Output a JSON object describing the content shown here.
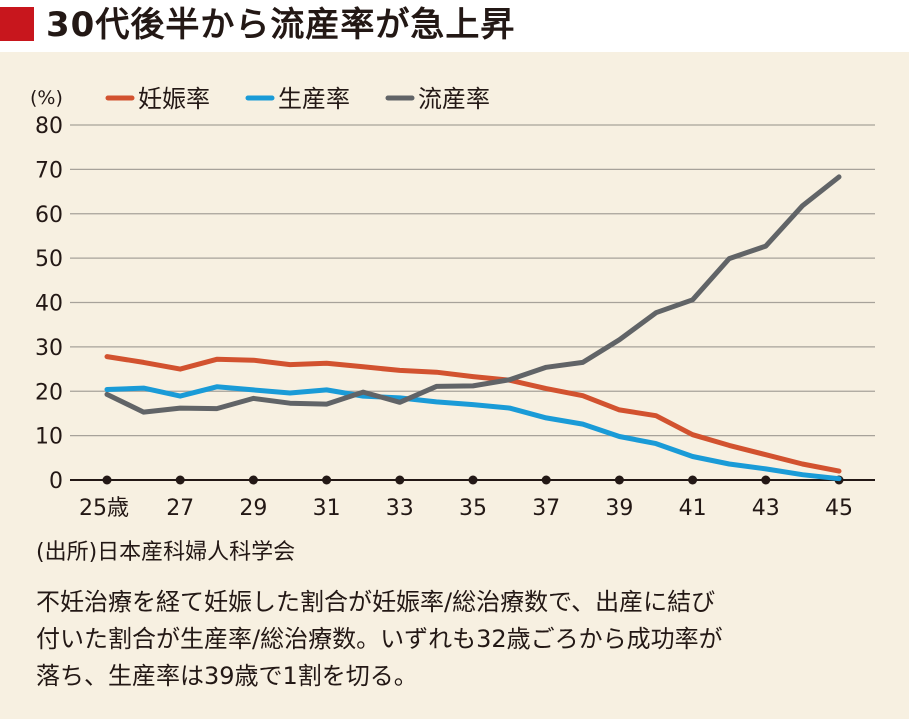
{
  "header": {
    "title": "30代後半から流産率が急上昇",
    "accent_color": "#c8161d"
  },
  "chart_data": {
    "type": "line",
    "title": "",
    "ylabel": "(%)",
    "xlabel": "",
    "ylim": [
      0,
      80
    ],
    "yticks": [
      "0",
      "10",
      "20",
      "30",
      "40",
      "50",
      "60",
      "70",
      "80"
    ],
    "x": [
      25,
      26,
      27,
      28,
      29,
      30,
      31,
      32,
      33,
      34,
      35,
      36,
      37,
      38,
      39,
      40,
      41,
      42,
      43,
      44,
      45
    ],
    "xtick_labels": [
      "25歳",
      "27",
      "29",
      "31",
      "33",
      "35",
      "37",
      "39",
      "41",
      "43",
      "45"
    ],
    "grid": true,
    "legend_position": "top-left",
    "series": [
      {
        "name": "妊娠率",
        "color": "#d2522f",
        "values": [
          27.8,
          26.5,
          25.0,
          27.2,
          27.0,
          26.0,
          26.3,
          25.5,
          24.7,
          24.3,
          23.3,
          22.5,
          20.6,
          19.0,
          15.8,
          14.5,
          10.2,
          7.8,
          5.7,
          3.6,
          2.0
        ]
      },
      {
        "name": "生産率",
        "color": "#1a9bd7",
        "values": [
          20.4,
          20.7,
          18.9,
          21.0,
          20.3,
          19.6,
          20.3,
          18.9,
          18.5,
          17.6,
          17.0,
          16.2,
          14.0,
          12.6,
          9.8,
          8.2,
          5.3,
          3.6,
          2.5,
          1.2,
          0.3
        ]
      },
      {
        "name": "流産率",
        "color": "#616467",
        "values": [
          19.3,
          15.3,
          16.2,
          16.1,
          18.4,
          17.3,
          17.1,
          19.8,
          17.5,
          21.1,
          21.2,
          22.6,
          25.4,
          26.5,
          31.6,
          37.7,
          40.6,
          49.9,
          52.7,
          61.8,
          68.3
        ]
      }
    ]
  },
  "source": "(出所)日本産科婦人科学会",
  "caption": {
    "lines": [
      "不妊治療を経て妊娠した割合が妊娠率/総治療数で、出産に結び",
      "付いた割合が生産率/総治療数。いずれも32歳ごろから成功率が",
      "落ち、生産率は39歳で1割を切る。"
    ]
  }
}
